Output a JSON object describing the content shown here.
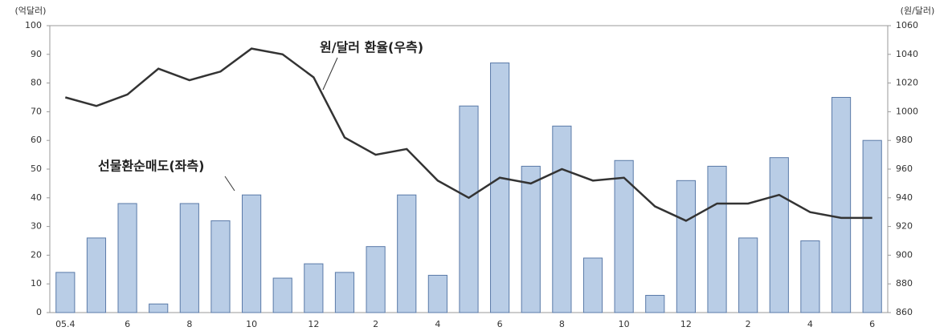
{
  "chart_data": {
    "type": "bar-line",
    "y_label": "(억달러)",
    "y2_label": "(원/달러)",
    "categories": [
      "05.4",
      null,
      "6",
      null,
      "8",
      null,
      "10",
      null,
      "12",
      null,
      "2",
      null,
      "4",
      null,
      "6",
      null,
      "8",
      null,
      "10",
      null,
      "12",
      null,
      "2",
      null,
      "4",
      null,
      "6"
    ],
    "series": [
      {
        "name": "선물환순매도(좌측)",
        "type": "bar",
        "color": "#b9cde6",
        "values": [
          14,
          26,
          38,
          3,
          38,
          32,
          41,
          12,
          17,
          14,
          23,
          41,
          13,
          72,
          87,
          51,
          65,
          19,
          53,
          6,
          46,
          51,
          26,
          54,
          25,
          75,
          60
        ]
      },
      {
        "name": "원/달러 환율(우측)",
        "type": "line",
        "axis": "y2",
        "color": "#333333",
        "values": [
          1010,
          1004,
          1012,
          1030,
          1022,
          1028,
          1044,
          1040,
          1024,
          982,
          970,
          974,
          952,
          940,
          954,
          950,
          960,
          952,
          954,
          934,
          924,
          936,
          936,
          942,
          930,
          926,
          926
        ]
      }
    ],
    "ylim": [
      0,
      100
    ],
    "yticks": [
      0,
      10,
      20,
      30,
      40,
      50,
      60,
      70,
      80,
      90,
      100
    ],
    "y2lim": [
      860,
      1060
    ],
    "y2ticks": [
      860,
      880,
      900,
      920,
      940,
      960,
      980,
      1000,
      1020,
      1040,
      1060
    ]
  }
}
